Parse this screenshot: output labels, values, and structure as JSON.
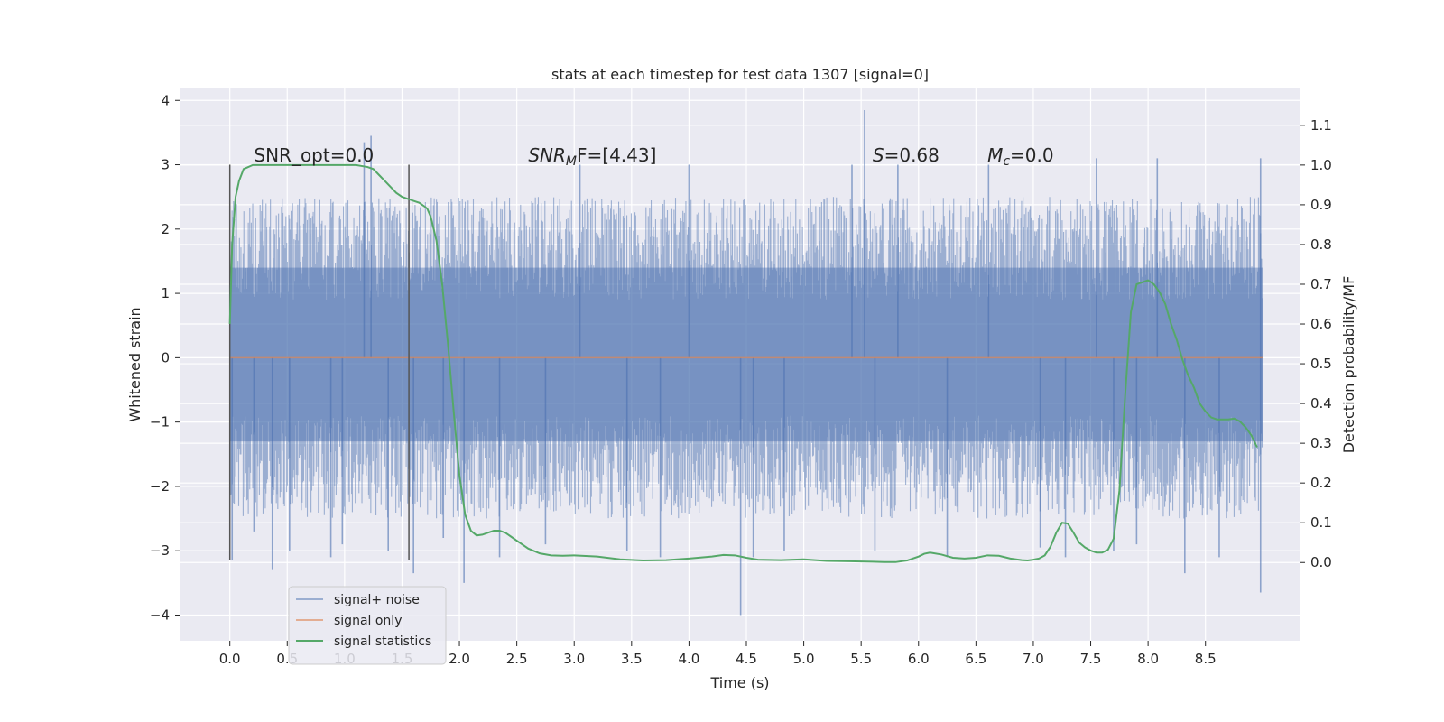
{
  "chart_data": {
    "type": "line",
    "title": "stats at each timestep for test data 1307 [signal=0]",
    "xlabel": "Time (s)",
    "ylabel": "Whitened strain",
    "y2label": "Detection probability/MF",
    "xlim": [
      -0.43,
      9.32
    ],
    "ylim": [
      -4.4,
      4.2
    ],
    "y2lim": [
      -0.197,
      1.195
    ],
    "xticks": [
      0.0,
      0.5,
      1.0,
      1.5,
      2.0,
      2.5,
      3.0,
      3.5,
      4.0,
      4.5,
      5.0,
      5.5,
      6.0,
      6.5,
      7.0,
      7.5,
      8.0,
      8.5
    ],
    "xtick_labels": [
      "0.0",
      "0.5",
      "1.0",
      "1.5",
      "2.0",
      "2.5",
      "3.0",
      "3.5",
      "4.0",
      "4.5",
      "5.0",
      "5.5",
      "6.0",
      "6.5",
      "7.0",
      "7.5",
      "8.0",
      "8.5"
    ],
    "yticks": [
      4,
      3,
      2,
      1,
      0,
      -1,
      -2,
      -3,
      -4
    ],
    "ytick_labels": [
      "4",
      "3",
      "2",
      "1",
      "0",
      "−1",
      "−2",
      "−3",
      "−4"
    ],
    "y2ticks": [
      1.1,
      1.0,
      0.9,
      0.8,
      0.7,
      0.6,
      0.5,
      0.4,
      0.3,
      0.2,
      0.1,
      0.0
    ],
    "y2tick_labels": [
      "1.1",
      "1.0",
      "0.9",
      "0.8",
      "0.7",
      "0.6",
      "0.5",
      "0.4",
      "0.3",
      "0.2",
      "0.1",
      "0.0"
    ],
    "noise_series": {
      "name": "signal+ noise",
      "color": "#4c72b0",
      "t_start": 0.0,
      "t_end": 9.0,
      "band": [
        -1.3,
        1.4
      ],
      "spikes": [
        [
          0.02,
          -3.15
        ],
        [
          0.21,
          -2.7
        ],
        [
          0.37,
          -3.3
        ],
        [
          0.52,
          -3.0
        ],
        [
          0.88,
          -3.1
        ],
        [
          0.98,
          -2.9
        ],
        [
          1.17,
          3.35
        ],
        [
          1.23,
          3.45
        ],
        [
          1.38,
          -3.0
        ],
        [
          1.6,
          -3.35
        ],
        [
          1.86,
          -2.8
        ],
        [
          2.04,
          -3.5
        ],
        [
          2.35,
          -3.1
        ],
        [
          2.75,
          -2.9
        ],
        [
          3.05,
          3.0
        ],
        [
          3.46,
          -3.0
        ],
        [
          3.75,
          -3.1
        ],
        [
          4.0,
          3.0
        ],
        [
          4.45,
          -4.0
        ],
        [
          4.56,
          -3.1
        ],
        [
          4.83,
          -3.0
        ],
        [
          5.42,
          3.0
        ],
        [
          5.53,
          3.85
        ],
        [
          5.62,
          -3.0
        ],
        [
          5.82,
          3.0
        ],
        [
          6.25,
          -3.1
        ],
        [
          6.61,
          3.0
        ],
        [
          7.06,
          -2.95
        ],
        [
          7.28,
          -3.1
        ],
        [
          7.55,
          3.1
        ],
        [
          7.7,
          -3.0
        ],
        [
          7.9,
          -2.9
        ],
        [
          8.08,
          3.1
        ],
        [
          8.32,
          -3.35
        ],
        [
          8.62,
          -3.1
        ],
        [
          8.98,
          3.1
        ],
        [
          8.98,
          -3.65
        ]
      ]
    },
    "signal_only": {
      "name": "signal only",
      "color": "#dd8452",
      "value": 0.0
    },
    "signal_statistics": {
      "name": "signal statistics",
      "color": "#55a868",
      "x": [
        0.0,
        0.02,
        0.05,
        0.08,
        0.12,
        0.2,
        0.3,
        0.4,
        0.5,
        0.6,
        0.7,
        0.8,
        0.9,
        1.0,
        1.1,
        1.2,
        1.25,
        1.3,
        1.35,
        1.4,
        1.45,
        1.5,
        1.55,
        1.6,
        1.65,
        1.7,
        1.72,
        1.75,
        1.8,
        1.85,
        1.9,
        1.95,
        2.0,
        2.05,
        2.1,
        2.15,
        2.2,
        2.25,
        2.3,
        2.35,
        2.4,
        2.45,
        2.5,
        2.6,
        2.7,
        2.8,
        2.9,
        3.0,
        3.2,
        3.4,
        3.6,
        3.8,
        4.0,
        4.2,
        4.3,
        4.4,
        4.5,
        4.6,
        4.8,
        5.0,
        5.2,
        5.4,
        5.6,
        5.7,
        5.8,
        5.9,
        6.0,
        6.05,
        6.1,
        6.2,
        6.3,
        6.4,
        6.5,
        6.6,
        6.7,
        6.8,
        6.9,
        6.95,
        7.0,
        7.05,
        7.1,
        7.15,
        7.2,
        7.25,
        7.3,
        7.35,
        7.4,
        7.45,
        7.5,
        7.55,
        7.6,
        7.65,
        7.7,
        7.75,
        7.8,
        7.85,
        7.9,
        7.95,
        8.0,
        8.05,
        8.1,
        8.15,
        8.2,
        8.25,
        8.3,
        8.35,
        8.4,
        8.45,
        8.5,
        8.55,
        8.6,
        8.65,
        8.7,
        8.75,
        8.8,
        8.85,
        8.9,
        8.95
      ],
      "values": [
        0.6,
        0.8,
        0.92,
        0.96,
        0.99,
        1.0,
        1.0,
        1.0,
        1.0,
        1.0,
        1.0,
        1.0,
        1.0,
        1.0,
        1.0,
        0.995,
        0.99,
        0.975,
        0.96,
        0.945,
        0.93,
        0.92,
        0.915,
        0.91,
        0.905,
        0.895,
        0.89,
        0.87,
        0.81,
        0.7,
        0.55,
        0.38,
        0.22,
        0.12,
        0.08,
        0.068,
        0.07,
        0.075,
        0.08,
        0.08,
        0.075,
        0.065,
        0.055,
        0.035,
        0.023,
        0.018,
        0.017,
        0.018,
        0.015,
        0.008,
        0.005,
        0.006,
        0.01,
        0.015,
        0.019,
        0.018,
        0.012,
        0.007,
        0.006,
        0.008,
        0.004,
        0.003,
        0.002,
        0.001,
        0.001,
        0.005,
        0.015,
        0.022,
        0.025,
        0.02,
        0.012,
        0.01,
        0.012,
        0.018,
        0.017,
        0.01,
        0.006,
        0.005,
        0.007,
        0.01,
        0.018,
        0.04,
        0.075,
        0.1,
        0.098,
        0.075,
        0.05,
        0.038,
        0.03,
        0.025,
        0.025,
        0.032,
        0.06,
        0.18,
        0.42,
        0.63,
        0.7,
        0.705,
        0.71,
        0.7,
        0.68,
        0.65,
        0.6,
        0.56,
        0.51,
        0.47,
        0.44,
        0.4,
        0.38,
        0.365,
        0.36,
        0.36,
        0.36,
        0.362,
        0.355,
        0.34,
        0.32,
        0.29
      ]
    },
    "markers": [
      {
        "x": 0.0,
        "y_top": 3.0,
        "y_bottom": -3.15
      },
      {
        "x": 1.56,
        "y_top": 3.0,
        "y_bottom": -3.15
      }
    ],
    "annotations": [
      {
        "kind": "plain",
        "text": "SNR_opt=0.0",
        "x": 0.21,
        "y": 3.05
      },
      {
        "kind": "sub",
        "main": "SNR",
        "sub": "M",
        "rest": "F=[4.43]",
        "x": 2.6,
        "y": 3.05
      },
      {
        "kind": "sub",
        "main": "S",
        "sub": "",
        "rest": "=0.68",
        "x": 5.6,
        "y": 3.05
      },
      {
        "kind": "sub",
        "main": "M",
        "sub": "c",
        "rest": "=0.0",
        "x": 6.6,
        "y": 3.05
      }
    ],
    "legend": {
      "position": "lower-left",
      "entries": [
        {
          "label": "signal+ noise",
          "color": "#4c72b0"
        },
        {
          "label": "signal only",
          "color": "#dd8452"
        },
        {
          "label": "signal statistics",
          "color": "#55a868"
        }
      ]
    },
    "grid": true,
    "background": "#eaeaf2"
  }
}
